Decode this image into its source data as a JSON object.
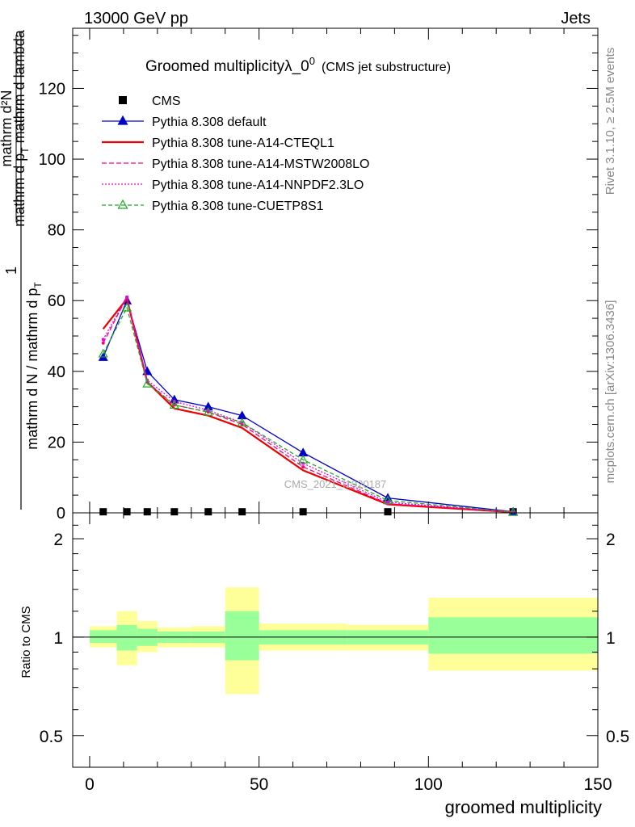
{
  "header": {
    "left": "13000 GeV pp",
    "right": "Jets"
  },
  "side_text": {
    "rivet": "Rivet 3.1.10, ≥ 2.5M events",
    "mcplots": "mcplots.cern.ch [arXiv:1306.3436]"
  },
  "watermark": "CMS_2021_I1920187",
  "chart_data": [
    {
      "type": "line",
      "title_main": "Groomed multiplicityλ_0",
      "title_sup": "0",
      "title_note": "(CMS jet substructure)",
      "ylabel_num": "mathrm d²N",
      "ylabel_den": "mathrm d p",
      "ylabel_den_sub": "T",
      "ylabel_den_rest": " mathrm d lambda",
      "ylabel_frac_num": "1",
      "ylabel_frac_den": "mathrm d N / mathrm d p",
      "ylabel_frac_den_sub": "T",
      "xlim": [
        -5,
        150
      ],
      "ylim": [
        0,
        137
      ],
      "yticks": [
        0,
        20,
        40,
        60,
        80,
        100,
        120
      ],
      "bins": [
        [
          2,
          8
        ],
        [
          8,
          14
        ],
        [
          14,
          20
        ],
        [
          20,
          30
        ],
        [
          30,
          40
        ],
        [
          40,
          50
        ],
        [
          50,
          76
        ],
        [
          76,
          100
        ],
        [
          100,
          150
        ]
      ],
      "x": [
        4,
        11,
        17,
        25,
        35,
        45,
        63,
        88,
        125
      ],
      "series": [
        {
          "name": "CMS",
          "color": "#000000",
          "dash": "",
          "marker": "square",
          "values": [
            0.3,
            0.3,
            0.3,
            0.3,
            0.3,
            0.3,
            0.3,
            0.3,
            0.3
          ]
        },
        {
          "name": "Pythia 8.308 default",
          "color": "#0000cc",
          "dash": "",
          "marker": "triangle-filled",
          "values": [
            44,
            60,
            40,
            32,
            30,
            27.5,
            17,
            4.2,
            0.3
          ]
        },
        {
          "name": "Pythia 8.308 tune-A14-CTEQL1",
          "color": "#ee0000",
          "dash": "",
          "marker": "none",
          "values": [
            52,
            60.5,
            37,
            29.5,
            27.5,
            24,
            12,
            2.4,
            0.2
          ]
        },
        {
          "name": "Pythia 8.308 tune-A14-MSTW2008LO",
          "color": "#ff0077",
          "dash": "6,3",
          "marker": "dot",
          "values": [
            48,
            61,
            37,
            30.5,
            28.5,
            25,
            13,
            2.6,
            0.2
          ]
        },
        {
          "name": "Pythia 8.308 tune-A14-NNPDF2.3LO",
          "color": "#ee00ee",
          "dash": "2,2",
          "marker": "dot",
          "values": [
            49,
            61,
            37.5,
            31.5,
            29,
            25.5,
            14,
            3,
            0.2
          ]
        },
        {
          "name": "Pythia 8.308 tune-CUETP8S1",
          "color": "#22aa22",
          "dash": "5,3",
          "marker": "triangle-open",
          "values": [
            45,
            58,
            36.5,
            30.5,
            28.5,
            25.5,
            15,
            3.5,
            0.2
          ]
        }
      ]
    },
    {
      "type": "area",
      "ylabel": "Ratio to CMS",
      "xlabel": "groomed multiplicity",
      "xlim": [
        -5,
        150
      ],
      "ylim": [
        0.4,
        2.4
      ],
      "yscale": "log",
      "yticks": [
        0.5,
        1,
        2
      ],
      "ytick_labels": [
        "0.5",
        "1",
        "2"
      ],
      "xticks": [
        0,
        50,
        100,
        150
      ],
      "xtick_labels": [
        "0",
        "50",
        "100",
        "150"
      ],
      "reference": 1,
      "bins": [
        [
          0,
          8
        ],
        [
          8,
          14
        ],
        [
          14,
          20
        ],
        [
          20,
          30
        ],
        [
          30,
          40
        ],
        [
          40,
          50
        ],
        [
          50,
          76
        ],
        [
          76,
          100
        ],
        [
          100,
          150
        ]
      ],
      "band_inner": [
        [
          0.96,
          1.05
        ],
        [
          0.91,
          1.09
        ],
        [
          0.94,
          1.06
        ],
        [
          0.96,
          1.04
        ],
        [
          0.96,
          1.04
        ],
        [
          0.85,
          1.2
        ],
        [
          0.95,
          1.05
        ],
        [
          0.95,
          1.05
        ],
        [
          0.89,
          1.15
        ]
      ],
      "band_outer": [
        [
          0.93,
          1.08
        ],
        [
          0.82,
          1.2
        ],
        [
          0.9,
          1.12
        ],
        [
          0.93,
          1.07
        ],
        [
          0.93,
          1.08
        ],
        [
          0.67,
          1.42
        ],
        [
          0.91,
          1.1
        ],
        [
          0.91,
          1.09
        ],
        [
          0.79,
          1.32
        ]
      ],
      "inner_color": "#99ff99",
      "outer_color": "#ffff99"
    }
  ]
}
